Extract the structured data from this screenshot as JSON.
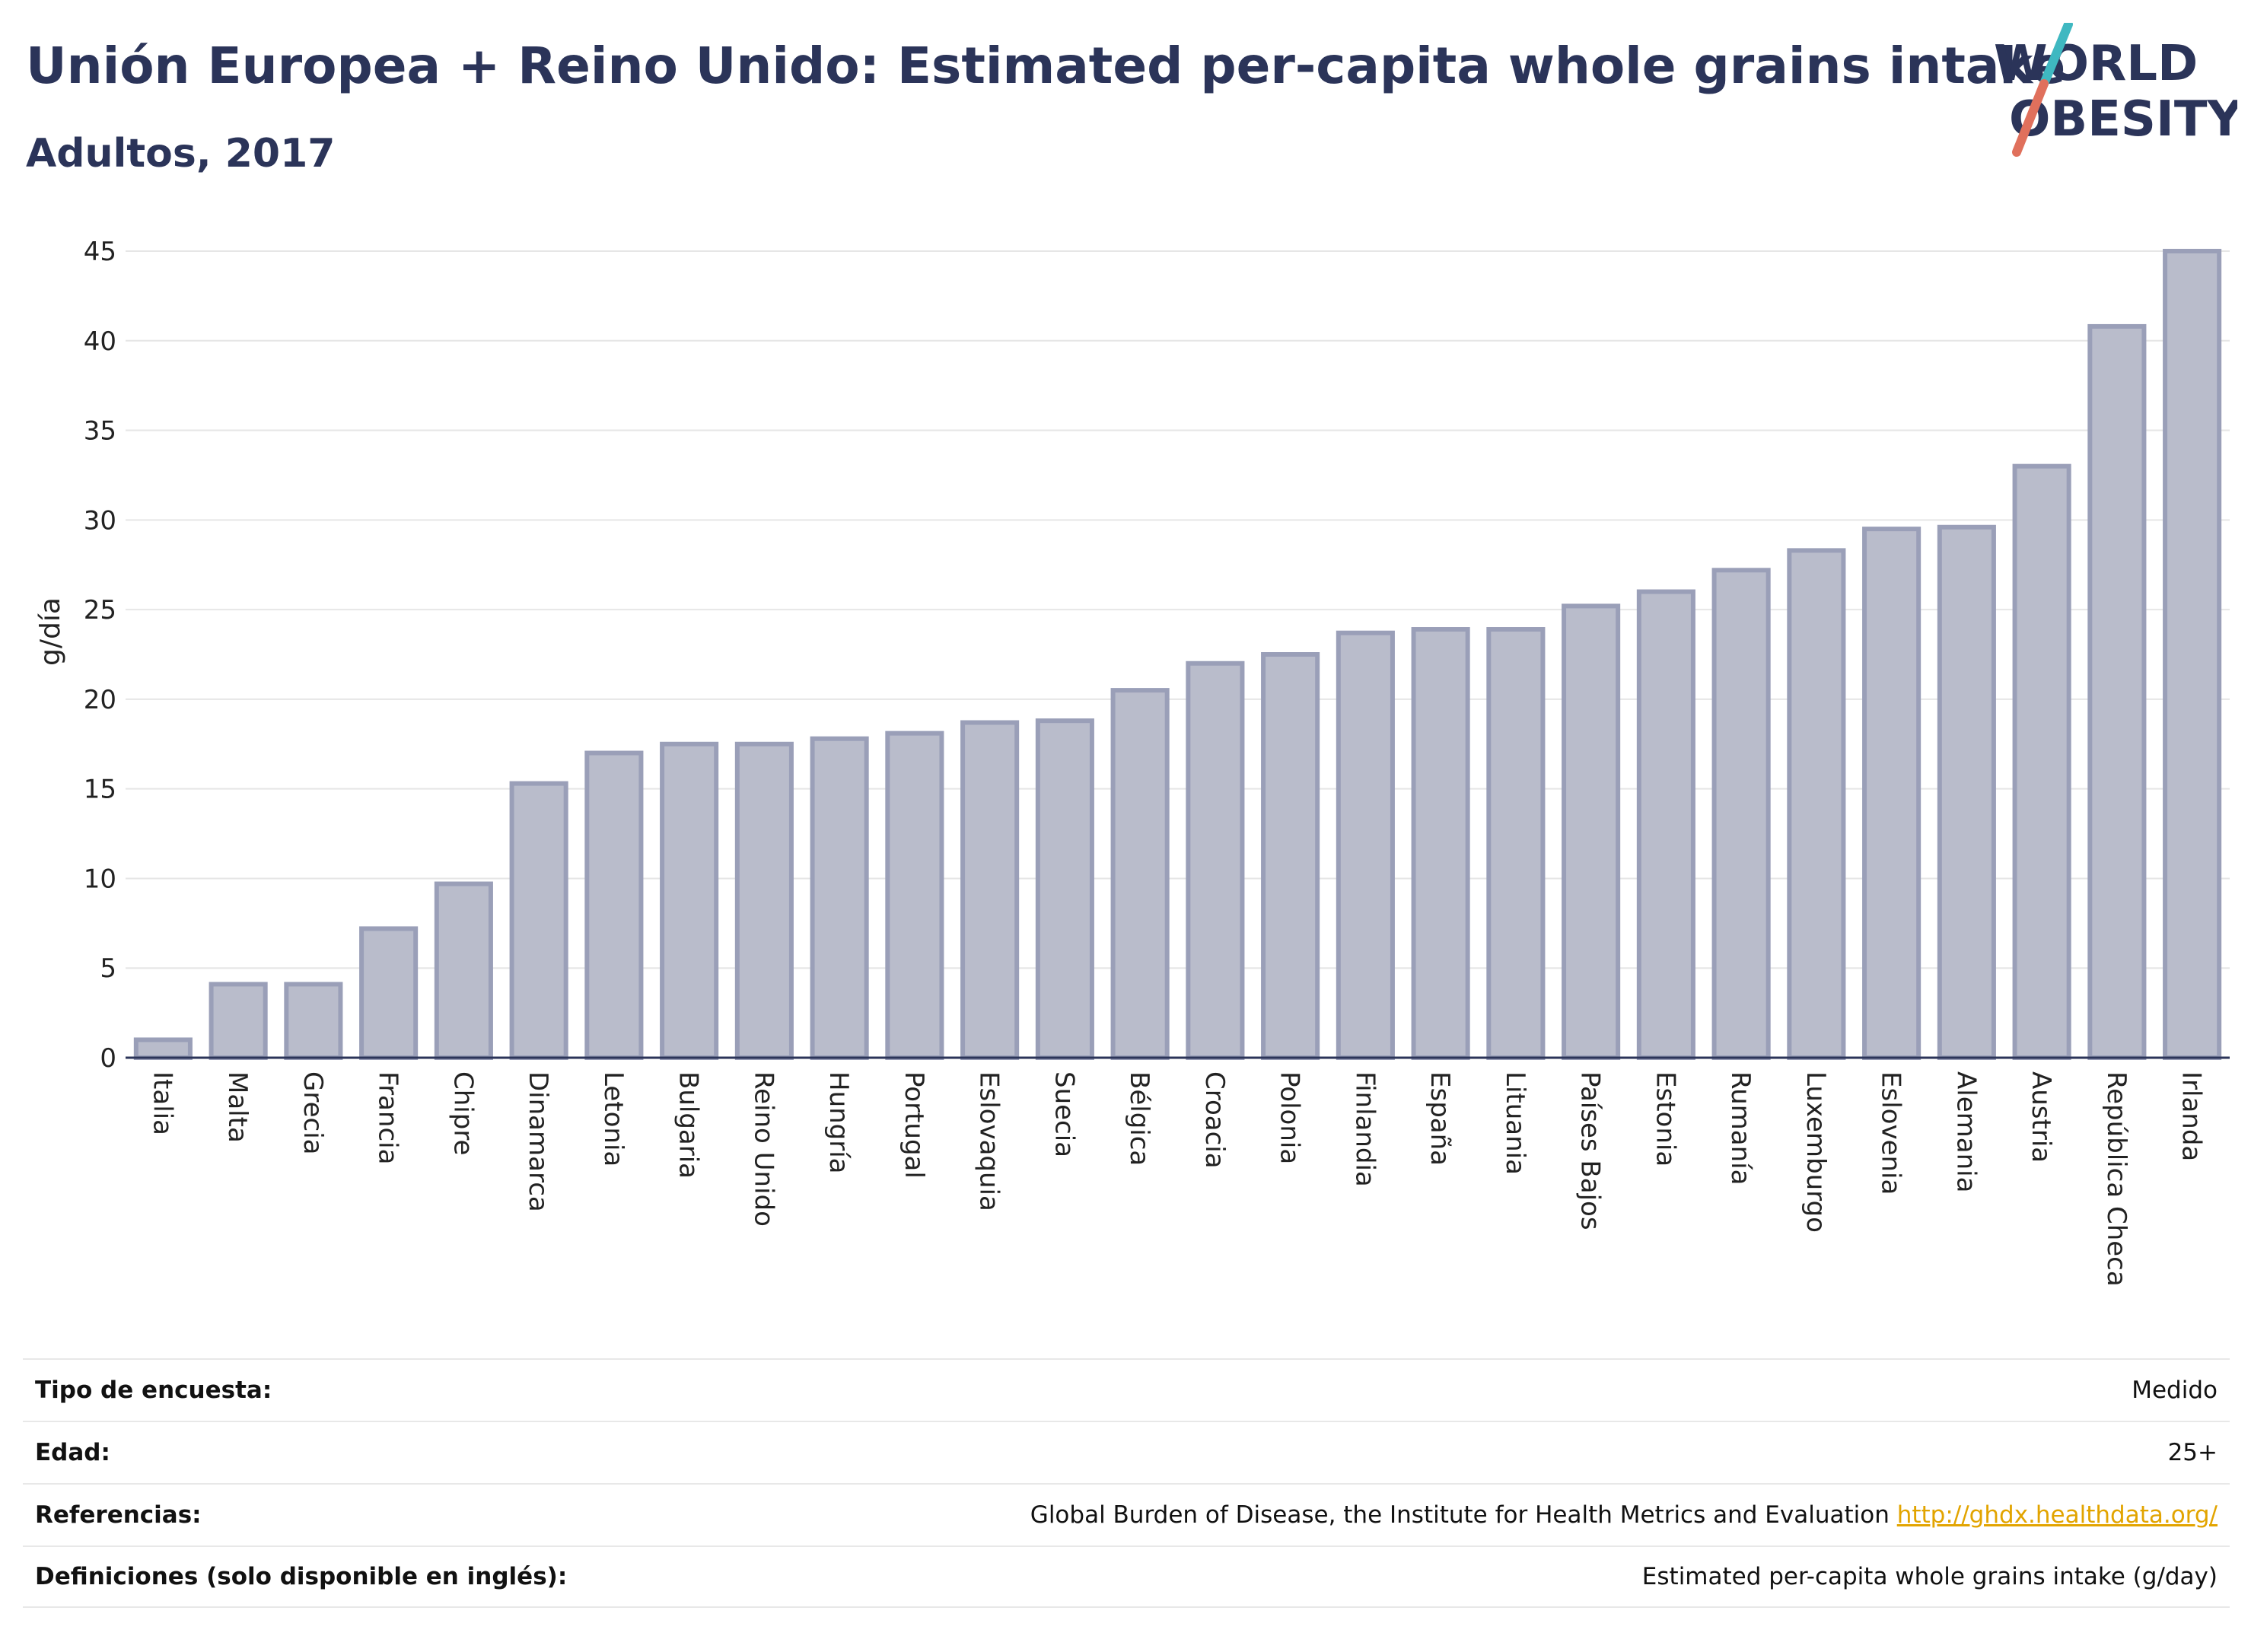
{
  "header": {
    "title": "Unión Europea + Reino Unido: Estimated per-capita whole grains intake",
    "subtitle": "Adultos, 2017"
  },
  "logo": {
    "line1": "WORLD",
    "line2": "OBESITY",
    "slash_colors": [
      "#3fb8c1",
      "#e0705c"
    ]
  },
  "chart_data": {
    "type": "bar",
    "ylabel": "g/día",
    "ylim": [
      0,
      45
    ],
    "yticks": [
      0,
      5,
      10,
      15,
      20,
      25,
      30,
      35,
      40,
      45
    ],
    "grid": true,
    "bar_fill": "#b9bccb",
    "bar_stroke": "#9a9fb8",
    "categories": [
      "Italia",
      "Malta",
      "Grecia",
      "Francia",
      "Chipre",
      "Dinamarca",
      "Letonia",
      "Bulgaria",
      "Reino Unido",
      "Hungría",
      "Portugal",
      "Eslovaquia",
      "Suecia",
      "Bélgica",
      "Croacia",
      "Polonia",
      "Finlandia",
      "España",
      "Lituania",
      "Países Bajos",
      "Estonia",
      "Rumanía",
      "Luxemburgo",
      "Eslovenia",
      "Alemania",
      "Austria",
      "República Checa",
      "Irlanda"
    ],
    "values": [
      1.0,
      4.1,
      4.1,
      7.2,
      9.7,
      15.3,
      17.0,
      17.5,
      17.5,
      17.8,
      18.1,
      18.7,
      18.8,
      20.5,
      22.0,
      22.5,
      23.7,
      23.9,
      23.9,
      25.2,
      26.0,
      27.2,
      28.3,
      29.5,
      29.6,
      33.0,
      40.8,
      45.0
    ]
  },
  "info": {
    "rows": [
      {
        "label": "Tipo de encuesta:",
        "value": "Medido"
      },
      {
        "label": "Edad:",
        "value": "25+"
      },
      {
        "label": "Referencias:",
        "value": "Global Burden of Disease, the Institute for Health Metrics and Evaluation",
        "link": "http://ghdx.healthdata.org/"
      },
      {
        "label": "Definiciones (solo disponible en inglés):",
        "value": "Estimated per-capita whole grains intake (g/day)"
      }
    ],
    "link_color": "#e2a400"
  }
}
